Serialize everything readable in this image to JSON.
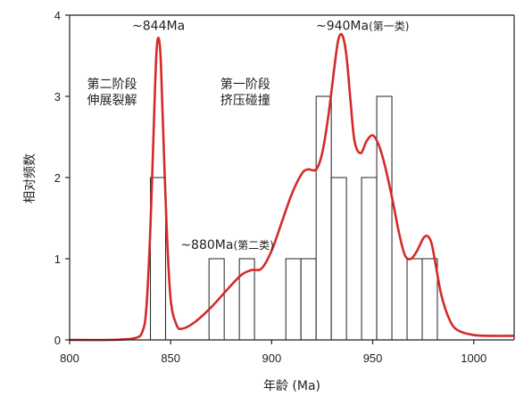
{
  "chart_data": {
    "type": "bar",
    "xlabel": "年龄 (Ma)",
    "ylabel": "相对频数",
    "xlim": [
      800,
      1020
    ],
    "ylim": [
      0,
      4
    ],
    "xticks": [
      800,
      850,
      900,
      950,
      1000
    ],
    "yticks": [
      0,
      1,
      2,
      3,
      4
    ],
    "bin_width": 7.5,
    "histogram": [
      {
        "x0": 840,
        "count": 2
      },
      {
        "x0": 869,
        "count": 1
      },
      {
        "x0": 884,
        "count": 1
      },
      {
        "x0": 907,
        "count": 1
      },
      {
        "x0": 914.5,
        "count": 1
      },
      {
        "x0": 922,
        "count": 3
      },
      {
        "x0": 929.5,
        "count": 2
      },
      {
        "x0": 944.5,
        "count": 2
      },
      {
        "x0": 952,
        "count": 3
      },
      {
        "x0": 967,
        "count": 1
      },
      {
        "x0": 974.5,
        "count": 1
      }
    ],
    "density_curve": {
      "color": "#d42a2a",
      "x": [
        800,
        820,
        832,
        836,
        838,
        840,
        842,
        843,
        844,
        845,
        846,
        848,
        850,
        853,
        856,
        862,
        870,
        878,
        885,
        890,
        895,
        900,
        905,
        910,
        915,
        918,
        922,
        925,
        928,
        931,
        933,
        935,
        937,
        939,
        941,
        944,
        947,
        950,
        953,
        956,
        960,
        963,
        966,
        969,
        972,
        975,
        977,
        979,
        981,
        984,
        988,
        992,
        1000,
        1010,
        1020
      ],
      "y": [
        0.0,
        0.0,
        0.02,
        0.1,
        0.4,
        1.4,
        2.9,
        3.55,
        3.72,
        3.5,
        2.8,
        1.4,
        0.5,
        0.18,
        0.14,
        0.22,
        0.4,
        0.62,
        0.8,
        0.86,
        0.88,
        1.1,
        1.45,
        1.8,
        2.05,
        2.1,
        2.1,
        2.3,
        2.75,
        3.35,
        3.7,
        3.75,
        3.5,
        2.95,
        2.45,
        2.3,
        2.45,
        2.52,
        2.4,
        2.15,
        1.7,
        1.32,
        1.04,
        1.0,
        1.1,
        1.25,
        1.28,
        1.2,
        0.95,
        0.55,
        0.25,
        0.12,
        0.06,
        0.05,
        0.05
      ]
    },
    "annotations": [
      {
        "id": "peak_844",
        "text": "~844Ma",
        "x": 844,
        "y": 3.82,
        "anchor": "middle"
      },
      {
        "id": "peak_940",
        "text": "~940Ma",
        "sub": "(第一类)",
        "x": 945,
        "y": 3.82,
        "anchor": "middle"
      },
      {
        "id": "peak_880",
        "text": "~880Ma",
        "sub": "(第二类)",
        "x": 878,
        "y": 1.12,
        "anchor": "middle"
      },
      {
        "id": "stage2_title",
        "text": "第二阶段",
        "x": 821,
        "y": 3.1,
        "anchor": "middle"
      },
      {
        "id": "stage2_desc",
        "text": "伸展裂解",
        "x": 821,
        "y": 2.9,
        "anchor": "middle"
      },
      {
        "id": "stage1_title",
        "text": "第一阶段",
        "x": 887,
        "y": 3.1,
        "anchor": "middle"
      },
      {
        "id": "stage1_desc",
        "text": "挤压碰撞",
        "x": 887,
        "y": 2.9,
        "anchor": "middle"
      }
    ]
  }
}
